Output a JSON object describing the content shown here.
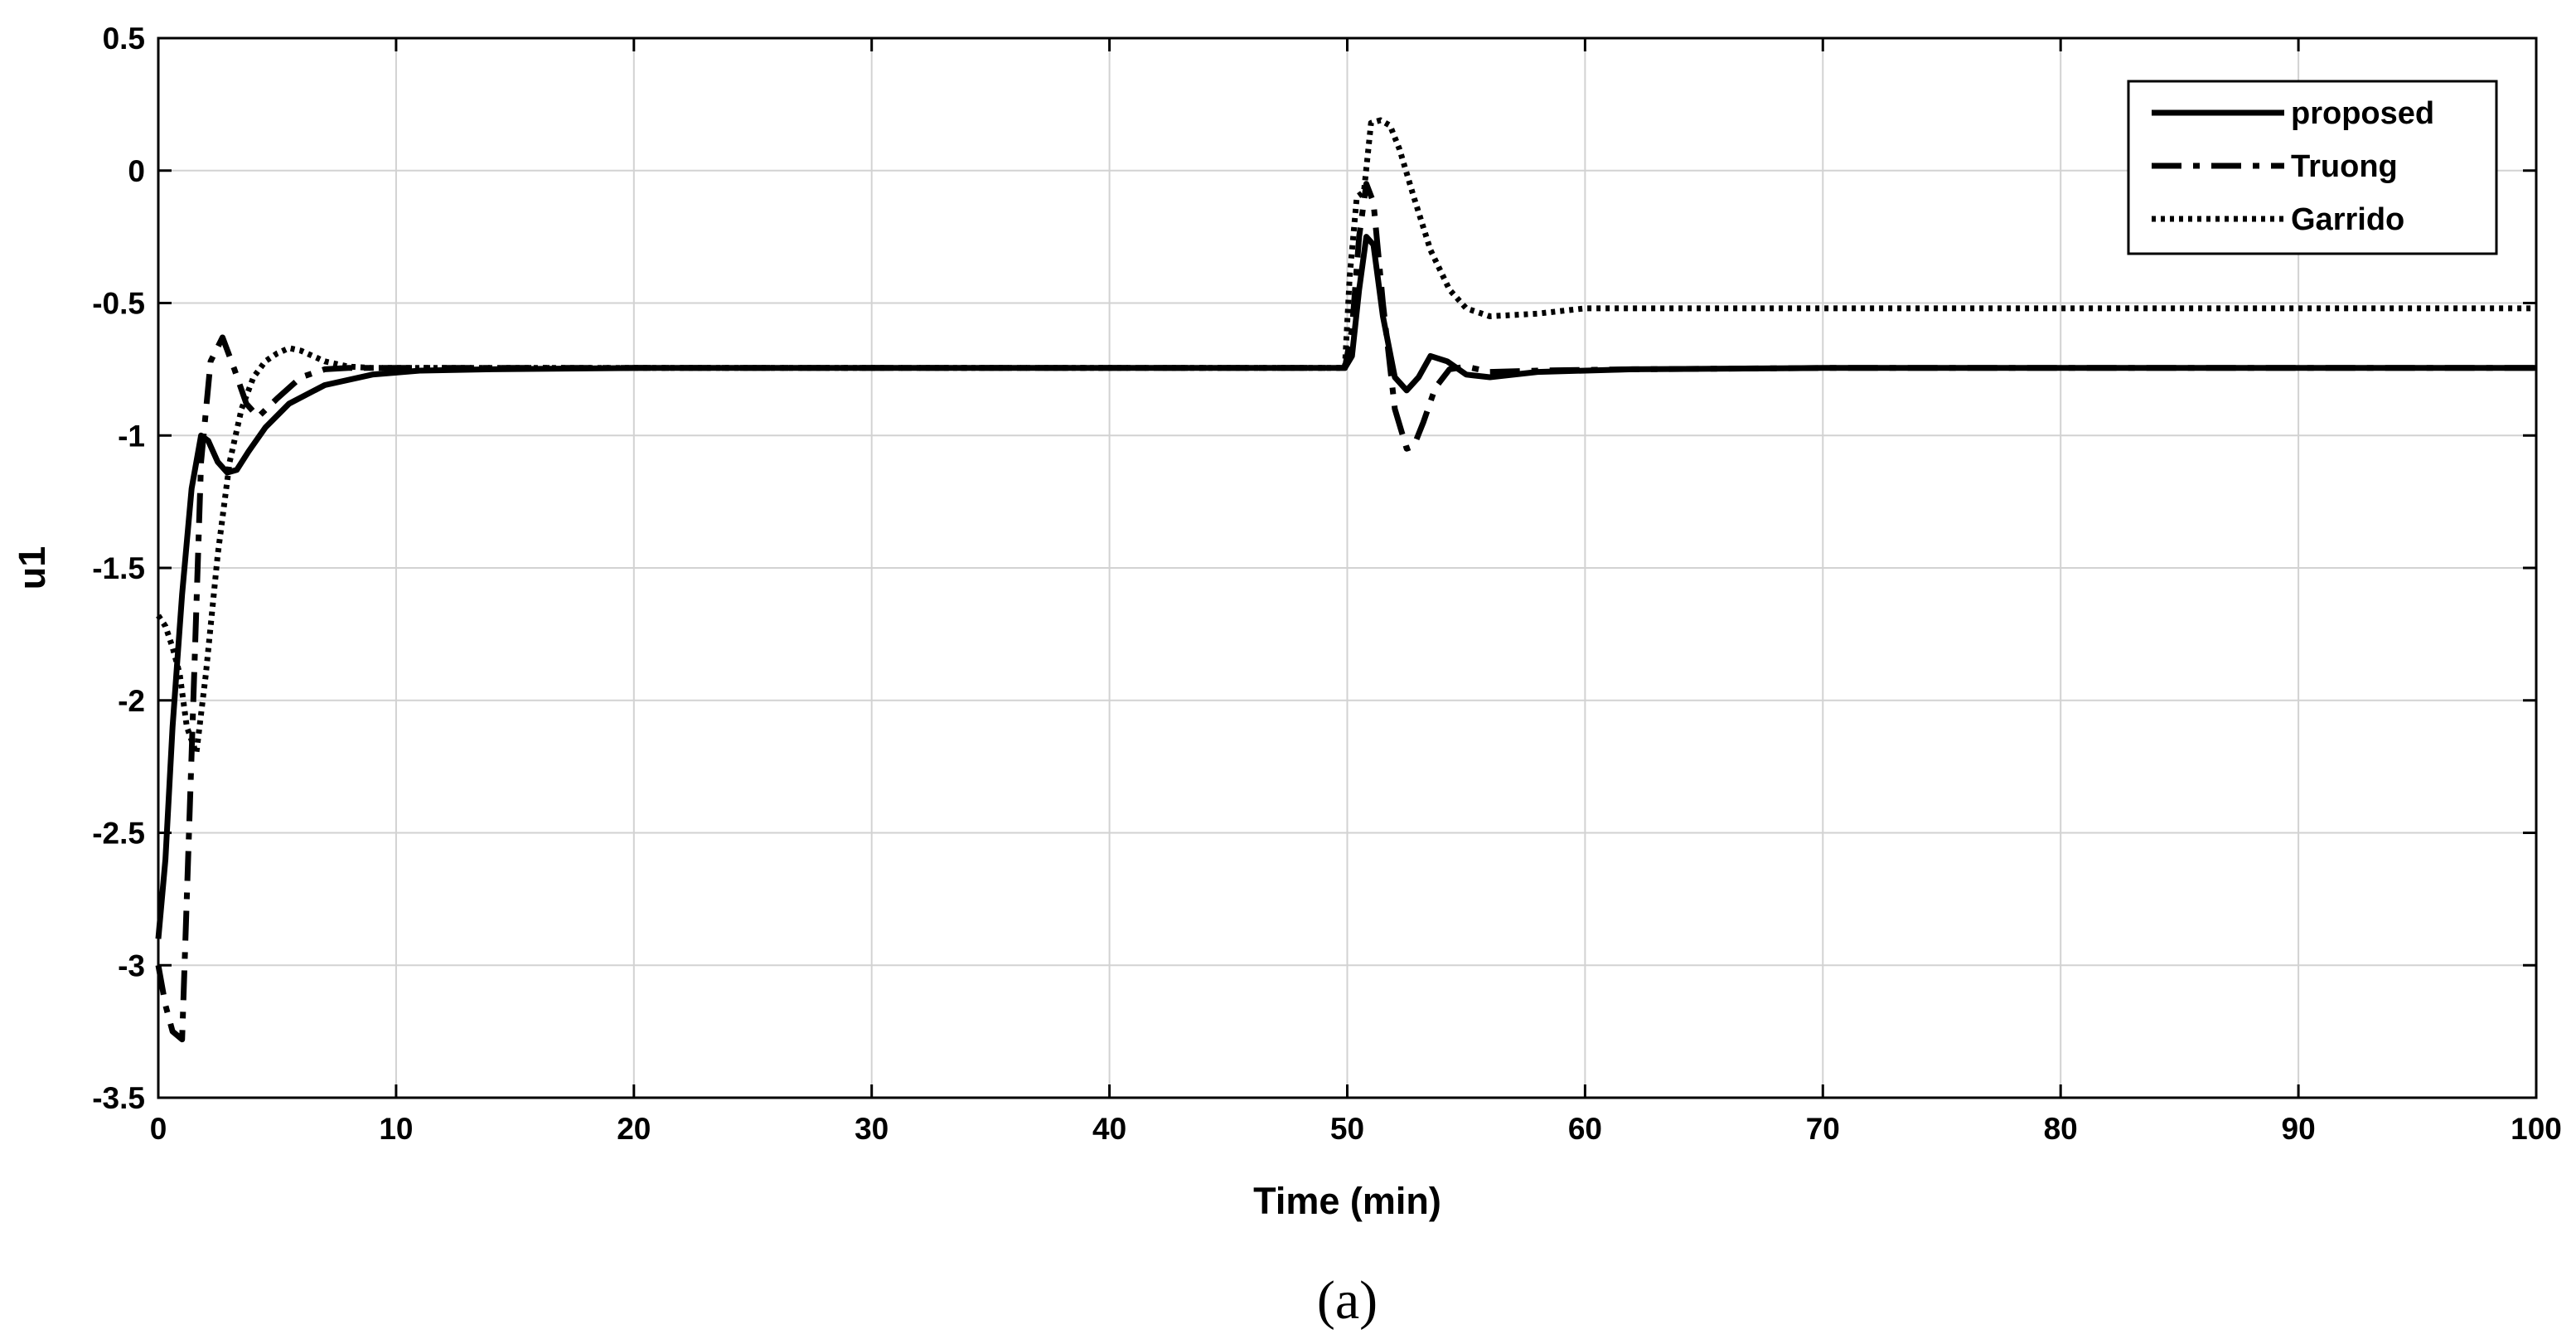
{
  "chart_data": {
    "type": "line",
    "xlabel": "Time (min)",
    "ylabel": "u1",
    "caption": "(a)",
    "xlim": [
      0,
      100
    ],
    "ylim": [
      -3.5,
      0.5
    ],
    "x_ticks": [
      0,
      10,
      20,
      30,
      40,
      50,
      60,
      70,
      80,
      90,
      100
    ],
    "y_ticks": [
      0.5,
      0,
      -0.5,
      -1,
      -1.5,
      -2,
      -2.5,
      -3,
      -3.5
    ],
    "x_tick_labels": [
      "0",
      "10",
      "20",
      "30",
      "40",
      "50",
      "60",
      "70",
      "80",
      "90",
      "100"
    ],
    "y_tick_labels": [
      "0.5",
      "0",
      "-0.5",
      "-1",
      "-1.5",
      "-2",
      "-2.5",
      "-3",
      "-3.5"
    ],
    "grid": true,
    "legend_position": "top-right",
    "series": [
      {
        "name": "proposed",
        "line_style": "solid",
        "color": "#000000",
        "x": [
          0,
          0.3,
          0.6,
          1,
          1.4,
          1.8,
          2.1,
          2.5,
          2.9,
          3.3,
          3.8,
          4.5,
          5.5,
          7,
          9,
          11,
          14,
          20,
          30,
          40,
          49.9,
          50.2,
          50.5,
          50.8,
          51.1,
          51.5,
          52,
          52.5,
          53,
          53.5,
          54.2,
          55,
          56,
          58,
          62,
          70,
          80,
          90,
          100
        ],
        "y": [
          -2.9,
          -2.6,
          -2.1,
          -1.6,
          -1.2,
          -1.0,
          -1.02,
          -1.1,
          -1.14,
          -1.13,
          -1.06,
          -0.97,
          -0.88,
          -0.81,
          -0.77,
          -0.755,
          -0.75,
          -0.745,
          -0.745,
          -0.745,
          -0.745,
          -0.7,
          -0.45,
          -0.25,
          -0.28,
          -0.55,
          -0.78,
          -0.83,
          -0.78,
          -0.7,
          -0.72,
          -0.77,
          -0.78,
          -0.76,
          -0.75,
          -0.745,
          -0.745,
          -0.745,
          -0.745
        ]
      },
      {
        "name": "Truong",
        "line_style": "dashdot",
        "color": "#000000",
        "x": [
          0,
          0.3,
          0.6,
          1,
          1.4,
          1.8,
          2.2,
          2.7,
          3.2,
          3.7,
          4.2,
          5,
          6,
          7,
          8,
          10,
          14,
          20,
          30,
          40,
          49.9,
          50.2,
          50.5,
          50.8,
          51.1,
          51.5,
          52,
          52.5,
          52.8,
          53.2,
          53.7,
          54.3,
          55,
          56,
          58,
          62,
          70,
          80,
          90,
          100
        ],
        "y": [
          -3.0,
          -3.15,
          -3.25,
          -3.28,
          -2.2,
          -1.1,
          -0.72,
          -0.63,
          -0.75,
          -0.88,
          -0.93,
          -0.86,
          -0.78,
          -0.75,
          -0.745,
          -0.745,
          -0.745,
          -0.745,
          -0.745,
          -0.745,
          -0.745,
          -0.6,
          -0.25,
          -0.05,
          -0.12,
          -0.5,
          -0.9,
          -1.05,
          -1.04,
          -0.95,
          -0.82,
          -0.75,
          -0.74,
          -0.76,
          -0.755,
          -0.75,
          -0.745,
          -0.745,
          -0.745,
          -0.745
        ]
      },
      {
        "name": "Garrido",
        "line_style": "dotted",
        "color": "#000000",
        "x": [
          0,
          0.3,
          0.6,
          0.9,
          1.2,
          1.6,
          2,
          2.5,
          3,
          3.5,
          4,
          4.5,
          5,
          5.5,
          6,
          7,
          8,
          9,
          10,
          14,
          20,
          30,
          40,
          49.9,
          50.1,
          50.4,
          50.7,
          51,
          51.4,
          51.8,
          52.2,
          52.8,
          53.5,
          54.3,
          55,
          56,
          58,
          60,
          70,
          80,
          90,
          100
        ],
        "y": [
          -1.68,
          -1.72,
          -1.8,
          -1.9,
          -2.1,
          -2.2,
          -1.9,
          -1.45,
          -1.1,
          -0.9,
          -0.78,
          -0.72,
          -0.69,
          -0.67,
          -0.68,
          -0.72,
          -0.74,
          -0.745,
          -0.745,
          -0.745,
          -0.745,
          -0.745,
          -0.745,
          -0.745,
          -0.4,
          -0.1,
          -0.08,
          0.18,
          0.19,
          0.17,
          0.08,
          -0.1,
          -0.3,
          -0.45,
          -0.52,
          -0.55,
          -0.54,
          -0.52,
          -0.52,
          -0.52,
          -0.52,
          -0.52
        ]
      }
    ]
  }
}
